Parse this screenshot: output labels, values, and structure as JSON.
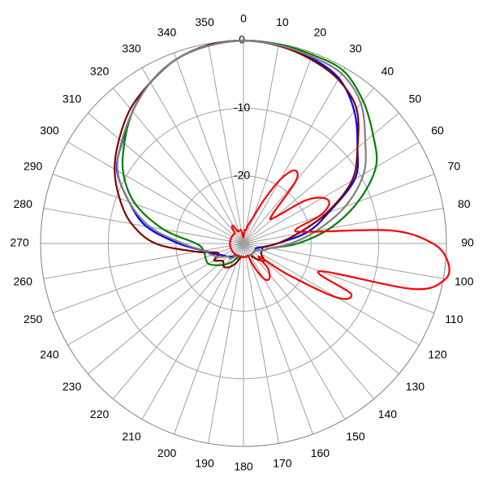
{
  "chart_data": {
    "type": "polar",
    "rlim": [
      -30,
      0
    ],
    "rticks": [
      -20,
      -10,
      0
    ],
    "thetaticks": [
      0,
      10,
      20,
      30,
      40,
      50,
      60,
      70,
      80,
      90,
      100,
      110,
      120,
      130,
      140,
      150,
      160,
      170,
      180,
      190,
      200,
      210,
      220,
      230,
      240,
      250,
      260,
      270,
      280,
      290,
      300,
      310,
      320,
      330,
      340,
      350
    ],
    "grid": true,
    "series": [
      {
        "color": "#0000ff",
        "theta": [
          0,
          10,
          20,
          30,
          40,
          50,
          60,
          70,
          80,
          90,
          100,
          110,
          120,
          130,
          140,
          150,
          160,
          170,
          180,
          190,
          200,
          210,
          220,
          230,
          240,
          250,
          260,
          270,
          280,
          290,
          300,
          310,
          320,
          330,
          340,
          350
        ],
        "values": [
          0,
          -0.2,
          -0.8,
          -1.8,
          -4.5,
          -8,
          -11,
          -16.6,
          -20.4,
          -25,
          -27,
          -28,
          -28,
          -28,
          -28,
          -28,
          -28,
          -28,
          -28,
          -28,
          -28,
          -28,
          -27.5,
          -27,
          -26.5,
          -25.5,
          -24,
          -20.4,
          -15.4,
          -12,
          -8.4,
          -6.6,
          -4.5,
          -2.5,
          -1,
          -0.3
        ]
      },
      {
        "color": "#008000",
        "theta": [
          0,
          10,
          20,
          30,
          40,
          50,
          60,
          70,
          80,
          90,
          100,
          110,
          120,
          130,
          140,
          150,
          160,
          170,
          180,
          190,
          200,
          210,
          220,
          230,
          240,
          250,
          260,
          270,
          280,
          290,
          300,
          310,
          320,
          330,
          340,
          350
        ],
        "values": [
          0,
          -0.1,
          -0.3,
          -0.5,
          -2.5,
          -5,
          -7.4,
          -12,
          -17,
          -22,
          -26,
          -27,
          -28,
          -28,
          -28,
          -28,
          -28,
          -28,
          -28,
          -28,
          -28,
          -27,
          -26,
          -25,
          -24,
          -24,
          -24,
          -23,
          -18,
          -13,
          -9.5,
          -7,
          -4.5,
          -2.5,
          -1,
          -0.3
        ]
      },
      {
        "color": "#800000",
        "theta": [
          0,
          10,
          20,
          30,
          40,
          50,
          60,
          70,
          80,
          90,
          100,
          110,
          120,
          130,
          140,
          150,
          160,
          170,
          180,
          190,
          200,
          210,
          220,
          230,
          240,
          250,
          260,
          270,
          280,
          290,
          300,
          310,
          320,
          330,
          340,
          350
        ],
        "values": [
          0,
          -0.3,
          -1,
          -2,
          -4,
          -8,
          -11.5,
          -17,
          -22,
          -25,
          -27,
          -27,
          -27,
          -26,
          -27,
          -28,
          -28,
          -28,
          -28,
          -28,
          -27,
          -26,
          -25.5,
          -26,
          -25,
          -26,
          -23,
          -17,
          -13.2,
          -10.5,
          -8,
          -6,
          -4,
          -2.5,
          -1,
          -0.2
        ]
      },
      {
        "color": "#808080",
        "theta": [
          0,
          10,
          20,
          30,
          40,
          50,
          60,
          70,
          80,
          90,
          100,
          110,
          120,
          130,
          140,
          150,
          160,
          170,
          180,
          190,
          200,
          210,
          220,
          230,
          240,
          250,
          260,
          270,
          280,
          290,
          300,
          310,
          320,
          330,
          340,
          350
        ],
        "values": [
          0,
          -0.2,
          -0.6,
          -1,
          -3,
          -6.5,
          -9.5,
          -14,
          -19,
          -23,
          -26,
          -27,
          -28,
          -28,
          -28,
          -28,
          -28,
          -28,
          -28,
          -28,
          -28,
          -28,
          -27,
          -27,
          -26,
          -25,
          -24,
          -21,
          -16,
          -12,
          -8.5,
          -6.5,
          -4.5,
          -2.5,
          -1,
          -0.3
        ]
      },
      {
        "color": "#ff0000",
        "theta": [
          0,
          5,
          10,
          15,
          20,
          25,
          30,
          35,
          40,
          45,
          50,
          55,
          60,
          65,
          70,
          75,
          80,
          85,
          90,
          95,
          100,
          105,
          110,
          115,
          120,
          125,
          130,
          135,
          140,
          145,
          150,
          155,
          160,
          165,
          170,
          175,
          180,
          185,
          190,
          195,
          200,
          205,
          210,
          215,
          220,
          225,
          230,
          235,
          240,
          245,
          250,
          255,
          260,
          265,
          270,
          275,
          280,
          285,
          290,
          295,
          300,
          305,
          310,
          315,
          320,
          325,
          330,
          335,
          340,
          345,
          350,
          355
        ],
        "values": [
          -29,
          -28,
          -28,
          -27,
          -26,
          -23,
          -19,
          -16.8,
          -18,
          -24,
          -24,
          -19,
          -16.5,
          -16,
          -18,
          -22,
          -20,
          -8,
          -2,
          0.3,
          0.3,
          -4,
          -18,
          -12.5,
          -14,
          -22,
          -27,
          -25,
          -24,
          -23.5,
          -24,
          -26,
          -28,
          -28,
          -28,
          -28,
          -28,
          -28,
          -28,
          -28,
          -28,
          -28,
          -28,
          -28,
          -28,
          -28,
          -28,
          -28,
          -28,
          -28,
          -28,
          -28,
          -28,
          -28,
          -28,
          -28,
          -28,
          -28,
          -28,
          -28,
          -28,
          -28,
          -28,
          -28,
          -28,
          -27,
          -27,
          -28,
          -28,
          -28,
          -28,
          -29
        ]
      }
    ]
  }
}
